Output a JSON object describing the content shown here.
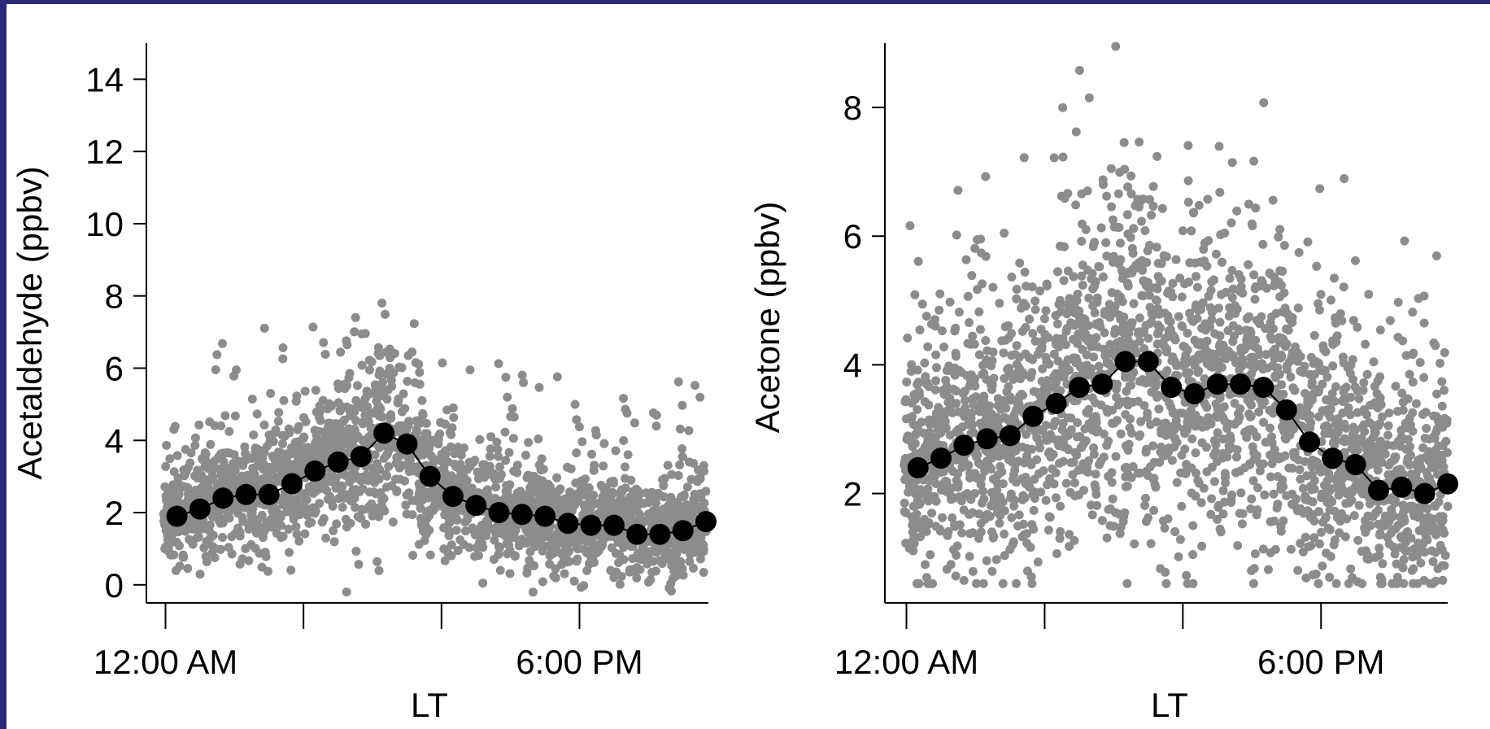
{
  "colors": {
    "scatter": "#8c8c8c",
    "mean": "#000000",
    "background_frame": "#2a2a78"
  },
  "chart_data": [
    {
      "type": "scatter",
      "xlabel": "LT",
      "ylabel": "Acetaldehyde (ppbv)",
      "x_unit": "hour of day",
      "xlim": [
        -0.3,
        23.5
      ],
      "ylim": [
        -0.5,
        15.0
      ],
      "x_ticks": [
        0,
        6,
        12,
        18
      ],
      "x_tick_labels": [
        "12:00 AM",
        "",
        "",
        "6:00 PM"
      ],
      "y_ticks": [
        0,
        2,
        4,
        6,
        8,
        10,
        12,
        14
      ],
      "y_tick_labels": [
        "0",
        "2",
        "4",
        "6",
        "8",
        "10",
        "12",
        "14"
      ],
      "grid": false,
      "series": [
        {
          "style": "markers+line",
          "x": [
            0.5,
            1.5,
            2.5,
            3.5,
            4.5,
            5.5,
            6.5,
            7.5,
            8.5,
            9.5,
            10.5,
            11.5,
            12.5,
            13.5,
            14.5,
            15.5,
            16.5,
            17.5,
            18.5,
            19.5,
            20.5,
            21.5,
            22.5,
            23.5
          ],
          "y": [
            1.9,
            2.1,
            2.4,
            2.5,
            2.5,
            2.8,
            3.15,
            3.4,
            3.55,
            4.2,
            3.9,
            3.0,
            2.45,
            2.2,
            2.0,
            1.95,
            1.9,
            1.7,
            1.65,
            1.65,
            1.4,
            1.4,
            1.5,
            1.75
          ]
        }
      ]
    },
    {
      "type": "scatter",
      "xlabel": "LT",
      "ylabel": "Acetone (ppbv)",
      "x_unit": "hour of day",
      "xlim": [
        -0.3,
        23.5
      ],
      "ylim": [
        0.3,
        9.0
      ],
      "x_ticks": [
        0,
        6,
        12,
        18
      ],
      "x_tick_labels": [
        "12:00 AM",
        "",
        "",
        "6:00 PM"
      ],
      "y_ticks": [
        2,
        4,
        6,
        8
      ],
      "y_tick_labels": [
        "2",
        "4",
        "6",
        "8"
      ],
      "grid": false,
      "series": [
        {
          "style": "markers+line",
          "x": [
            0.5,
            1.5,
            2.5,
            3.5,
            4.5,
            5.5,
            6.5,
            7.5,
            8.5,
            9.5,
            10.5,
            11.5,
            12.5,
            13.5,
            14.5,
            15.5,
            16.5,
            17.5,
            18.5,
            19.5,
            20.5,
            21.5,
            22.5,
            23.5
          ],
          "y": [
            2.4,
            2.55,
            2.75,
            2.85,
            2.9,
            3.2,
            3.4,
            3.65,
            3.7,
            4.05,
            4.05,
            3.65,
            3.55,
            3.7,
            3.7,
            3.65,
            3.3,
            2.8,
            2.55,
            2.45,
            2.05,
            2.1,
            2.0,
            2.15
          ]
        }
      ]
    }
  ]
}
